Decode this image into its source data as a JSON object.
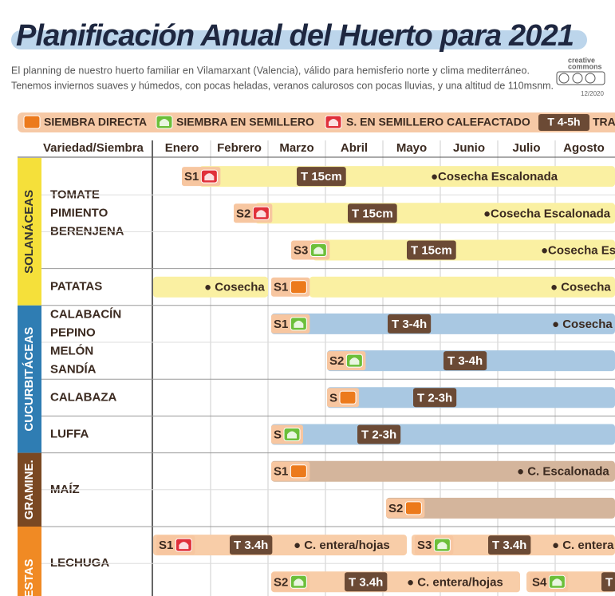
{
  "header": {
    "title": "Planificación Anual del Huerto para 2021",
    "subtitle": [
      "El planning de nuestro huerto familiar en Vilamarxant (Valencia), válido para hemisferio norte y clima mediterráneo.",
      "Tenemos inviernos suaves y húmedos, con pocas heladas, veranos calurosos con pocas lluvias, y una altitud de 110msnm."
    ],
    "license": [
      "creative",
      "commons"
    ],
    "date": "12/2020"
  },
  "legend": {
    "items": [
      "SIEMBRA DIRECTA",
      "SIEMBRA EN SEMILLERO",
      "S. EN SEMILLERO CALEFACTADO"
    ],
    "transplant": "T 4-5h",
    "transplant_text": "TRA"
  },
  "table": {
    "corner": "Variedad/Siembra",
    "months": [
      "Enero",
      "Febrero",
      "Marzo",
      "Abril",
      "Mayo",
      "Junio",
      "Julio",
      "Agosto"
    ],
    "groups": [
      {
        "name": "SOLANÁCEAS",
        "varieties": [
          {
            "names": [
              "TOMATE",
              "PIMIENTO",
              "BERENJENA"
            ],
            "lanes": [
              [
                "S1",
                "T 15cm",
                "●Cosecha Escalonada"
              ],
              [
                "S2",
                "T 15cm",
                "●Cosecha Escalonada"
              ],
              [
                "S3",
                "T 15cm",
                "●Cosecha Es"
              ]
            ]
          },
          {
            "names": [
              "PATATAS"
            ],
            "lanes": [
              [
                "● Cosecha",
                "S1",
                "● Cosecha"
              ]
            ]
          }
        ]
      },
      {
        "name": "CUCURBITÁCEAS",
        "varieties": [
          {
            "names": [
              "CALABACÍN",
              "PEPINO",
              "MELÓN",
              "SANDÍA"
            ],
            "lanes": [
              [
                "S1",
                "T 3-4h",
                "● Cosecha I"
              ],
              [
                "S2",
                "T 3-4h"
              ]
            ]
          },
          {
            "names": [
              "CALABAZA"
            ],
            "lanes": [
              [
                "S",
                "T 2-3h"
              ]
            ]
          },
          {
            "names": [
              "LUFFA"
            ],
            "lanes": [
              [
                "S",
                "T 2-3h"
              ]
            ]
          }
        ]
      },
      {
        "name": "GRAMINE.",
        "varieties": [
          {
            "names": [
              "MAÍZ"
            ],
            "lanes": [
              [
                "S1",
                "● C. Escalonada"
              ],
              [
                "S2"
              ]
            ]
          }
        ]
      },
      {
        "name": "ESTAS",
        "varieties": [
          {
            "names": [
              "LECHUGA"
            ],
            "lanes": [
              [
                "S1",
                "T 3.4h",
                "● C. entera/hojas",
                "S3",
                "T 3.4h",
                "● C. entera"
              ],
              [
                "S2",
                "T 3.4h",
                "● C. entera/hojas",
                "S4",
                "T"
              ]
            ]
          }
        ]
      }
    ]
  }
}
